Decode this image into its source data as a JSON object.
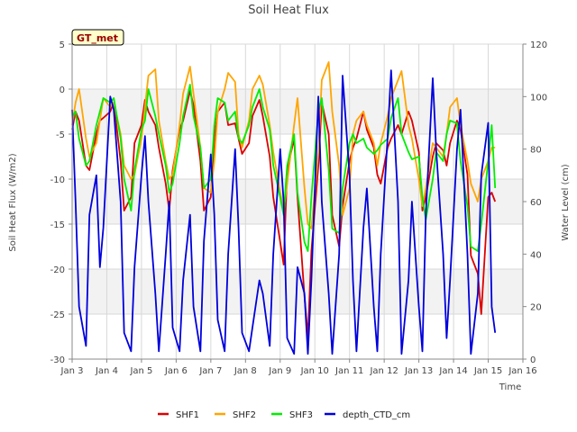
{
  "chart_data": {
    "type": "line",
    "title": "Soil Heat Flux",
    "xlabel": "Time",
    "ylabel": "Soil Heat Flux (W/m2)",
    "y2label": "Water Level (cm)",
    "badge": "GT_met",
    "xlim": [
      3,
      16
    ],
    "ylim": [
      -30,
      5
    ],
    "y2lim": [
      0,
      120
    ],
    "xticks": [
      {
        "v": 3,
        "label": "Jan 3"
      },
      {
        "v": 4,
        "label": "Jan 4"
      },
      {
        "v": 5,
        "label": "Jan 5"
      },
      {
        "v": 6,
        "label": "Jan 6"
      },
      {
        "v": 7,
        "label": "Jan 7"
      },
      {
        "v": 8,
        "label": "Jan 8"
      },
      {
        "v": 9,
        "label": "Jan 9"
      },
      {
        "v": 10,
        "label": "Jan 10"
      },
      {
        "v": 11,
        "label": "Jan 11"
      },
      {
        "v": 12,
        "label": "Jan 12"
      },
      {
        "v": 13,
        "label": "Jan 13"
      },
      {
        "v": 14,
        "label": "Jan 14"
      },
      {
        "v": 15,
        "label": "Jan 15"
      },
      {
        "v": 16,
        "label": "Jan 16"
      }
    ],
    "yticks": [
      5,
      0,
      -5,
      -10,
      -15,
      -20,
      -25,
      -30
    ],
    "y2ticks": [
      0,
      20,
      40,
      60,
      80,
      100,
      120
    ],
    "bands": [
      [
        -5,
        0
      ],
      [
        -15,
        -10
      ],
      [
        -25,
        -20
      ]
    ],
    "series": [
      {
        "name": "SHF1",
        "color": "#dd0000",
        "axis": "left",
        "x": [
          3.0,
          3.1,
          3.2,
          3.4,
          3.5,
          3.7,
          3.8,
          3.9,
          4.1,
          4.2,
          4.4,
          4.5,
          4.7,
          4.8,
          5.0,
          5.1,
          5.2,
          5.4,
          5.5,
          5.7,
          5.8,
          5.9,
          6.1,
          6.2,
          6.4,
          6.5,
          6.7,
          6.8,
          7.0,
          7.1,
          7.2,
          7.4,
          7.5,
          7.7,
          7.8,
          7.9,
          8.1,
          8.2,
          8.4,
          8.5,
          8.7,
          8.8,
          9.0,
          9.1,
          9.2,
          9.4,
          9.5,
          9.7,
          9.8,
          9.9,
          10.1,
          10.2,
          10.4,
          10.5,
          10.7,
          10.8,
          11.0,
          11.1,
          11.2,
          11.4,
          11.5,
          11.7,
          11.8,
          11.9,
          12.1,
          12.2,
          12.4,
          12.5,
          12.7,
          12.8,
          13.0,
          13.1,
          13.2,
          13.4,
          13.5,
          13.7,
          13.8,
          13.9,
          14.1,
          14.2,
          14.4,
          14.5,
          14.7,
          14.8,
          15.0,
          15.1,
          15.2
        ],
        "y": [
          -4.5,
          -2.5,
          -3.5,
          -8.5,
          -9,
          -5,
          -3.5,
          -3.2,
          -2.5,
          -1.5,
          -8,
          -13.5,
          -12,
          -6,
          -4,
          -1.2,
          -2.5,
          -4,
          -6.5,
          -10.5,
          -13.5,
          -9,
          -4.5,
          -3.5,
          -0.2,
          -1.8,
          -8,
          -13.5,
          -12,
          -5.5,
          -2.5,
          -1.5,
          -4,
          -3.8,
          -5.5,
          -7.2,
          -6,
          -3,
          -1.2,
          -3,
          -7.5,
          -12,
          -17,
          -19.5,
          -9,
          -5.5,
          -12,
          -23,
          -27.5,
          -18,
          -8.5,
          -1.5,
          -5,
          -14,
          -17.5,
          -13,
          -8,
          -6.5,
          -5.5,
          -2.5,
          -4.5,
          -6.5,
          -9.5,
          -10.5,
          -6.5,
          -5.5,
          -4,
          -5,
          -2.5,
          -3.5,
          -7,
          -13.5,
          -12,
          -7.5,
          -6,
          -6.8,
          -8.5,
          -6,
          -3.5,
          -4.5,
          -9.5,
          -18.5,
          -20.5,
          -25,
          -12,
          -11.5,
          -12.5
        ]
      },
      {
        "name": "SHF2",
        "color": "#ffa500",
        "axis": "left",
        "x": [
          3.0,
          3.1,
          3.2,
          3.4,
          3.5,
          3.7,
          3.8,
          3.9,
          4.1,
          4.2,
          4.4,
          4.5,
          4.7,
          4.8,
          5.0,
          5.1,
          5.2,
          5.4,
          5.5,
          5.7,
          5.8,
          5.9,
          6.1,
          6.2,
          6.4,
          6.5,
          6.7,
          6.8,
          7.0,
          7.1,
          7.2,
          7.4,
          7.5,
          7.7,
          7.8,
          7.9,
          8.1,
          8.2,
          8.4,
          8.5,
          8.7,
          8.8,
          9.0,
          9.1,
          9.2,
          9.4,
          9.5,
          9.7,
          9.8,
          9.9,
          10.1,
          10.2,
          10.4,
          10.5,
          10.7,
          10.8,
          11.0,
          11.1,
          11.2,
          11.4,
          11.5,
          11.7,
          11.8,
          11.9,
          12.1,
          12.2,
          12.4,
          12.5,
          12.7,
          12.8,
          13.0,
          13.1,
          13.2,
          13.4,
          13.5,
          13.7,
          13.8,
          13.9,
          14.1,
          14.2,
          14.4,
          14.5,
          14.7,
          14.8,
          15.0,
          15.1,
          15.2
        ],
        "y": [
          -4,
          -1.5,
          0,
          -5.5,
          -7.5,
          -6,
          -3.5,
          -1,
          -2,
          -1.5,
          -5,
          -8.5,
          -10,
          -9.5,
          -5.5,
          -2,
          1.5,
          2.2,
          -3.5,
          -8,
          -10,
          -9.5,
          -4,
          -0.5,
          2.5,
          -0.5,
          -6.5,
          -11,
          -11.5,
          -8,
          -2.5,
          0,
          1.8,
          0.8,
          -5,
          -6.5,
          -3.5,
          0,
          1.5,
          0.5,
          -4,
          -7,
          -11.5,
          -13.5,
          -10.5,
          -4,
          -1,
          -11,
          -15,
          -15.5,
          -7,
          1,
          3,
          -2.5,
          -8.5,
          -14,
          -11,
          -5,
          -3.5,
          -2.5,
          -4,
          -6,
          -8.5,
          -6,
          -3,
          -1,
          1,
          2,
          -4,
          -5.5,
          -10,
          -13,
          -11,
          -6,
          -6.5,
          -7.5,
          -5,
          -2,
          -1,
          -4,
          -8,
          -10.5,
          -12.5,
          -10,
          -8,
          -6.5,
          -6.5
        ]
      },
      {
        "name": "SHF3",
        "color": "#00ee00",
        "axis": "left",
        "x": [
          3.0,
          3.1,
          3.2,
          3.4,
          3.5,
          3.7,
          3.8,
          3.9,
          4.1,
          4.2,
          4.4,
          4.5,
          4.7,
          4.8,
          5.0,
          5.1,
          5.2,
          5.4,
          5.5,
          5.7,
          5.8,
          5.9,
          6.1,
          6.2,
          6.4,
          6.5,
          6.7,
          6.8,
          7.0,
          7.1,
          7.2,
          7.4,
          7.5,
          7.7,
          7.8,
          7.9,
          8.1,
          8.2,
          8.4,
          8.5,
          8.7,
          8.8,
          9.0,
          9.1,
          9.2,
          9.4,
          9.5,
          9.7,
          9.8,
          9.9,
          10.1,
          10.2,
          10.4,
          10.5,
          10.7,
          10.8,
          11.0,
          11.1,
          11.2,
          11.4,
          11.5,
          11.7,
          11.8,
          11.9,
          12.1,
          12.2,
          12.4,
          12.5,
          12.7,
          12.8,
          13.0,
          13.1,
          13.2,
          13.4,
          13.5,
          13.7,
          13.8,
          13.9,
          14.1,
          14.2,
          14.4,
          14.5,
          14.7,
          14.8,
          15.0,
          15.1,
          15.2
        ],
        "y": [
          -3,
          -2.5,
          -5.5,
          -8.5,
          -8,
          -4,
          -2.5,
          -1,
          -1.5,
          -1,
          -5.5,
          -10,
          -13.5,
          -9,
          -4.5,
          -3.5,
          0,
          -3,
          -5,
          -8.5,
          -11.5,
          -10.5,
          -6,
          -3,
          0.5,
          -3,
          -6.5,
          -11,
          -10,
          -4,
          -1,
          -1.5,
          -3.5,
          -2.5,
          -5.5,
          -6,
          -4,
          -2,
          0,
          -2,
          -4.5,
          -8.5,
          -12,
          -14,
          -8.5,
          -5,
          -11.5,
          -17,
          -18,
          -12,
          -2.5,
          -1,
          -9,
          -15.5,
          -16,
          -11,
          -6,
          -5,
          -6,
          -5.5,
          -6.5,
          -7.2,
          -6.8,
          -6.2,
          -5.5,
          -3.2,
          -1,
          -5,
          -7,
          -7.8,
          -7.5,
          -12,
          -14.5,
          -10,
          -7,
          -8,
          -5,
          -3.5,
          -3.8,
          -8,
          -13,
          -17.5,
          -18,
          -15,
          -8,
          -4,
          -11
        ]
      },
      {
        "name": "depth_CTD_cm",
        "color": "#0000dd",
        "axis": "right",
        "x": [
          3.0,
          3.1,
          3.2,
          3.4,
          3.5,
          3.7,
          3.8,
          3.9,
          4.1,
          4.2,
          4.4,
          4.5,
          4.7,
          4.8,
          5.0,
          5.1,
          5.2,
          5.4,
          5.5,
          5.7,
          5.8,
          5.9,
          6.1,
          6.2,
          6.4,
          6.5,
          6.7,
          6.8,
          7.0,
          7.1,
          7.2,
          7.4,
          7.5,
          7.7,
          7.8,
          7.9,
          8.1,
          8.2,
          8.4,
          8.5,
          8.7,
          8.8,
          9.0,
          9.1,
          9.2,
          9.4,
          9.5,
          9.7,
          9.8,
          9.9,
          10.1,
          10.2,
          10.4,
          10.5,
          10.7,
          10.8,
          11.0,
          11.1,
          11.2,
          11.4,
          11.5,
          11.7,
          11.8,
          11.9,
          12.1,
          12.2,
          12.4,
          12.5,
          12.7,
          12.8,
          13.0,
          13.1,
          13.2,
          13.4,
          13.5,
          13.7,
          13.8,
          13.9,
          14.1,
          14.2,
          14.4,
          14.5,
          14.7,
          14.8,
          15.0,
          15.1,
          15.2
        ],
        "y": [
          95,
          60,
          20,
          5,
          55,
          70,
          35,
          50,
          100,
          95,
          60,
          10,
          3,
          35,
          70,
          85,
          60,
          25,
          3,
          40,
          60,
          12,
          3,
          30,
          55,
          20,
          3,
          45,
          78,
          55,
          15,
          3,
          40,
          80,
          50,
          10,
          3,
          12,
          30,
          25,
          5,
          40,
          80,
          60,
          8,
          2,
          35,
          25,
          2,
          30,
          100,
          60,
          25,
          2,
          40,
          108,
          70,
          30,
          3,
          50,
          65,
          20,
          3,
          40,
          85,
          110,
          60,
          2,
          30,
          60,
          20,
          3,
          55,
          107,
          80,
          40,
          8,
          30,
          80,
          95,
          40,
          2,
          25,
          70,
          90,
          20,
          10
        ]
      }
    ]
  }
}
